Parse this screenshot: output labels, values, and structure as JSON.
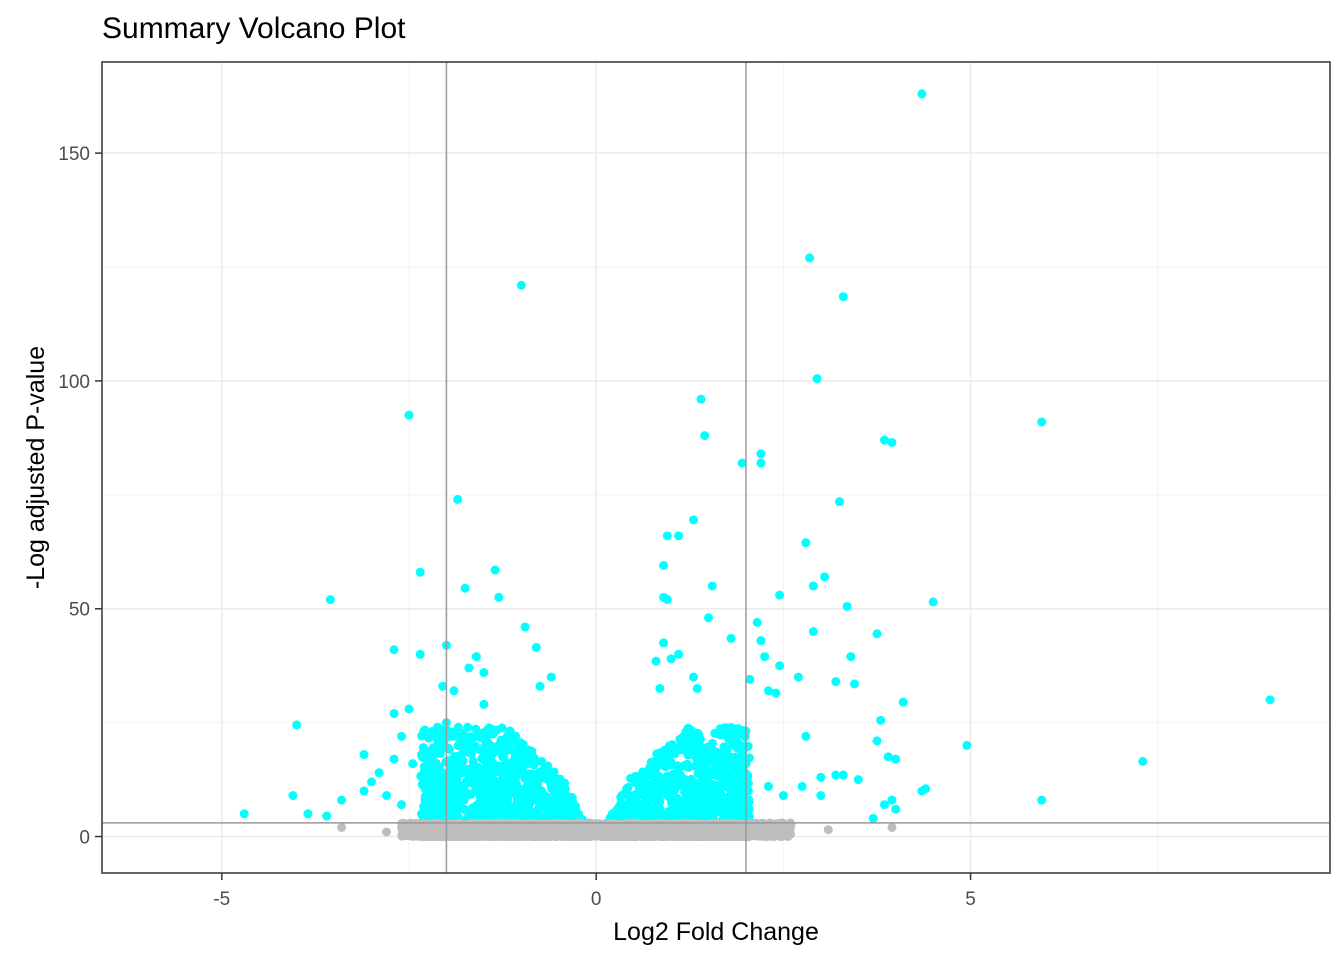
{
  "chart_data": {
    "type": "scatter",
    "title": "Summary Volcano Plot",
    "xlabel": "Log2 Fold Change",
    "ylabel": "-Log adjusted P-value",
    "xlim": [
      -6.6,
      9.8
    ],
    "ylim": [
      -8,
      170
    ],
    "x_ticks": [
      -5,
      0,
      5
    ],
    "y_ticks": [
      0,
      50,
      100,
      150
    ],
    "x_tick_labels": [
      "-5",
      "0",
      "5"
    ],
    "y_tick_labels": [
      "0",
      "50",
      "100",
      "150"
    ],
    "grid": true,
    "fold_change_thresholds": [
      -2,
      2
    ],
    "pvalue_threshold": 3,
    "colors": {
      "significant": "#00ffff",
      "not_significant": "#bebebe",
      "threshold_line": "#999999",
      "grid_major": "#ebebeb",
      "grid_minor": "#f3f3f3"
    },
    "series": [
      {
        "color": "#00ffff",
        "points": [
          [
            4.35,
            163
          ],
          [
            2.85,
            127
          ],
          [
            -1.0,
            121
          ],
          [
            3.3,
            118.5
          ],
          [
            2.95,
            100.5
          ],
          [
            -2.5,
            92.5
          ],
          [
            1.4,
            96
          ],
          [
            1.45,
            88
          ],
          [
            5.95,
            91
          ],
          [
            3.85,
            87
          ],
          [
            3.95,
            86.5
          ],
          [
            2.2,
            84
          ],
          [
            1.95,
            82
          ],
          [
            2.2,
            82
          ],
          [
            -1.85,
            74
          ],
          [
            3.25,
            73.5
          ],
          [
            1.3,
            69.5
          ],
          [
            0.95,
            66
          ],
          [
            1.1,
            66
          ],
          [
            2.8,
            64.5
          ],
          [
            0.9,
            59.5
          ],
          [
            -1.35,
            58.5
          ],
          [
            -2.35,
            58
          ],
          [
            3.05,
            57
          ],
          [
            -1.75,
            54.5
          ],
          [
            2.9,
            55
          ],
          [
            1.55,
            55
          ],
          [
            2.45,
            53
          ],
          [
            -3.55,
            52
          ],
          [
            0.9,
            52.5
          ],
          [
            0.95,
            52
          ],
          [
            -1.3,
            52.5
          ],
          [
            4.5,
            51.5
          ],
          [
            3.35,
            50.5
          ],
          [
            1.5,
            48
          ],
          [
            -0.95,
            46
          ],
          [
            2.15,
            47
          ],
          [
            2.9,
            45
          ],
          [
            3.75,
            44.5
          ],
          [
            1.8,
            43.5
          ],
          [
            2.2,
            43
          ],
          [
            -2.0,
            42
          ],
          [
            0.9,
            42.5
          ],
          [
            -0.8,
            41.5
          ],
          [
            -2.7,
            41
          ],
          [
            3.4,
            39.5
          ],
          [
            2.25,
            39.5
          ],
          [
            -2.35,
            40
          ],
          [
            0.8,
            38.5
          ],
          [
            1.0,
            39
          ],
          [
            1.1,
            40
          ],
          [
            -1.6,
            39.5
          ],
          [
            -1.7,
            37
          ],
          [
            2.45,
            37.5
          ],
          [
            -1.5,
            36
          ],
          [
            -0.6,
            35
          ],
          [
            1.3,
            35
          ],
          [
            2.7,
            35
          ],
          [
            3.2,
            34
          ],
          [
            3.45,
            33.5
          ],
          [
            2.05,
            34.5
          ],
          [
            -1.9,
            32
          ],
          [
            -2.05,
            33
          ],
          [
            -0.75,
            33
          ],
          [
            0.85,
            32.5
          ],
          [
            1.35,
            32.5
          ],
          [
            2.3,
            32
          ],
          [
            2.4,
            31.5
          ],
          [
            4.1,
            29.5
          ],
          [
            9.0,
            30
          ],
          [
            -1.5,
            29
          ],
          [
            -2.7,
            27
          ],
          [
            -2.5,
            28
          ],
          [
            3.8,
            25.5
          ],
          [
            -4.0,
            24.5
          ],
          [
            -2.0,
            25
          ],
          [
            2.8,
            22
          ],
          [
            -2.6,
            22
          ],
          [
            -3.1,
            18
          ],
          [
            -2.7,
            17
          ],
          [
            -2.9,
            14
          ],
          [
            -3.0,
            12
          ],
          [
            -2.3,
            14
          ],
          [
            -2.45,
            16
          ],
          [
            -2.2,
            13.5
          ],
          [
            3.75,
            21
          ],
          [
            3.9,
            17.5
          ],
          [
            4.0,
            17
          ],
          [
            4.95,
            20
          ],
          [
            7.3,
            16.5
          ],
          [
            -4.05,
            9
          ],
          [
            -3.85,
            5
          ],
          [
            -3.4,
            8
          ],
          [
            -3.6,
            4.5
          ],
          [
            -4.7,
            5
          ],
          [
            -3.1,
            10
          ],
          [
            -2.8,
            9
          ],
          [
            -2.6,
            7
          ],
          [
            3.0,
            13
          ],
          [
            3.2,
            13.5
          ],
          [
            3.3,
            13.5
          ],
          [
            3.5,
            12.5
          ],
          [
            2.75,
            11
          ],
          [
            3.0,
            9
          ],
          [
            4.35,
            10
          ],
          [
            4.4,
            10.5
          ],
          [
            3.95,
            8
          ],
          [
            3.85,
            7
          ],
          [
            4.0,
            6
          ],
          [
            5.95,
            8
          ],
          [
            3.7,
            4
          ],
          [
            2.5,
            9
          ],
          [
            2.3,
            11
          ]
        ]
      },
      {
        "color": "#bebebe",
        "points": [
          [
            -3.4,
            2
          ],
          [
            -2.8,
            1
          ],
          [
            -2.4,
            2.5
          ],
          [
            -2.2,
            1.5
          ],
          [
            -2.0,
            2
          ],
          [
            -1.8,
            1
          ],
          [
            -1.5,
            2
          ],
          [
            -1.2,
            1.5
          ],
          [
            -1.0,
            2.5
          ],
          [
            -0.8,
            1
          ],
          [
            -0.5,
            2
          ],
          [
            -0.3,
            1
          ],
          [
            0.3,
            1.5
          ],
          [
            0.5,
            2
          ],
          [
            0.8,
            1
          ],
          [
            1.0,
            2.5
          ],
          [
            1.3,
            1.5
          ],
          [
            1.6,
            2
          ],
          [
            1.9,
            1
          ],
          [
            2.2,
            2.5
          ],
          [
            2.5,
            1.5
          ],
          [
            2.6,
            2.5
          ],
          [
            3.1,
            1.5
          ],
          [
            3.95,
            2
          ]
        ]
      }
    ]
  }
}
